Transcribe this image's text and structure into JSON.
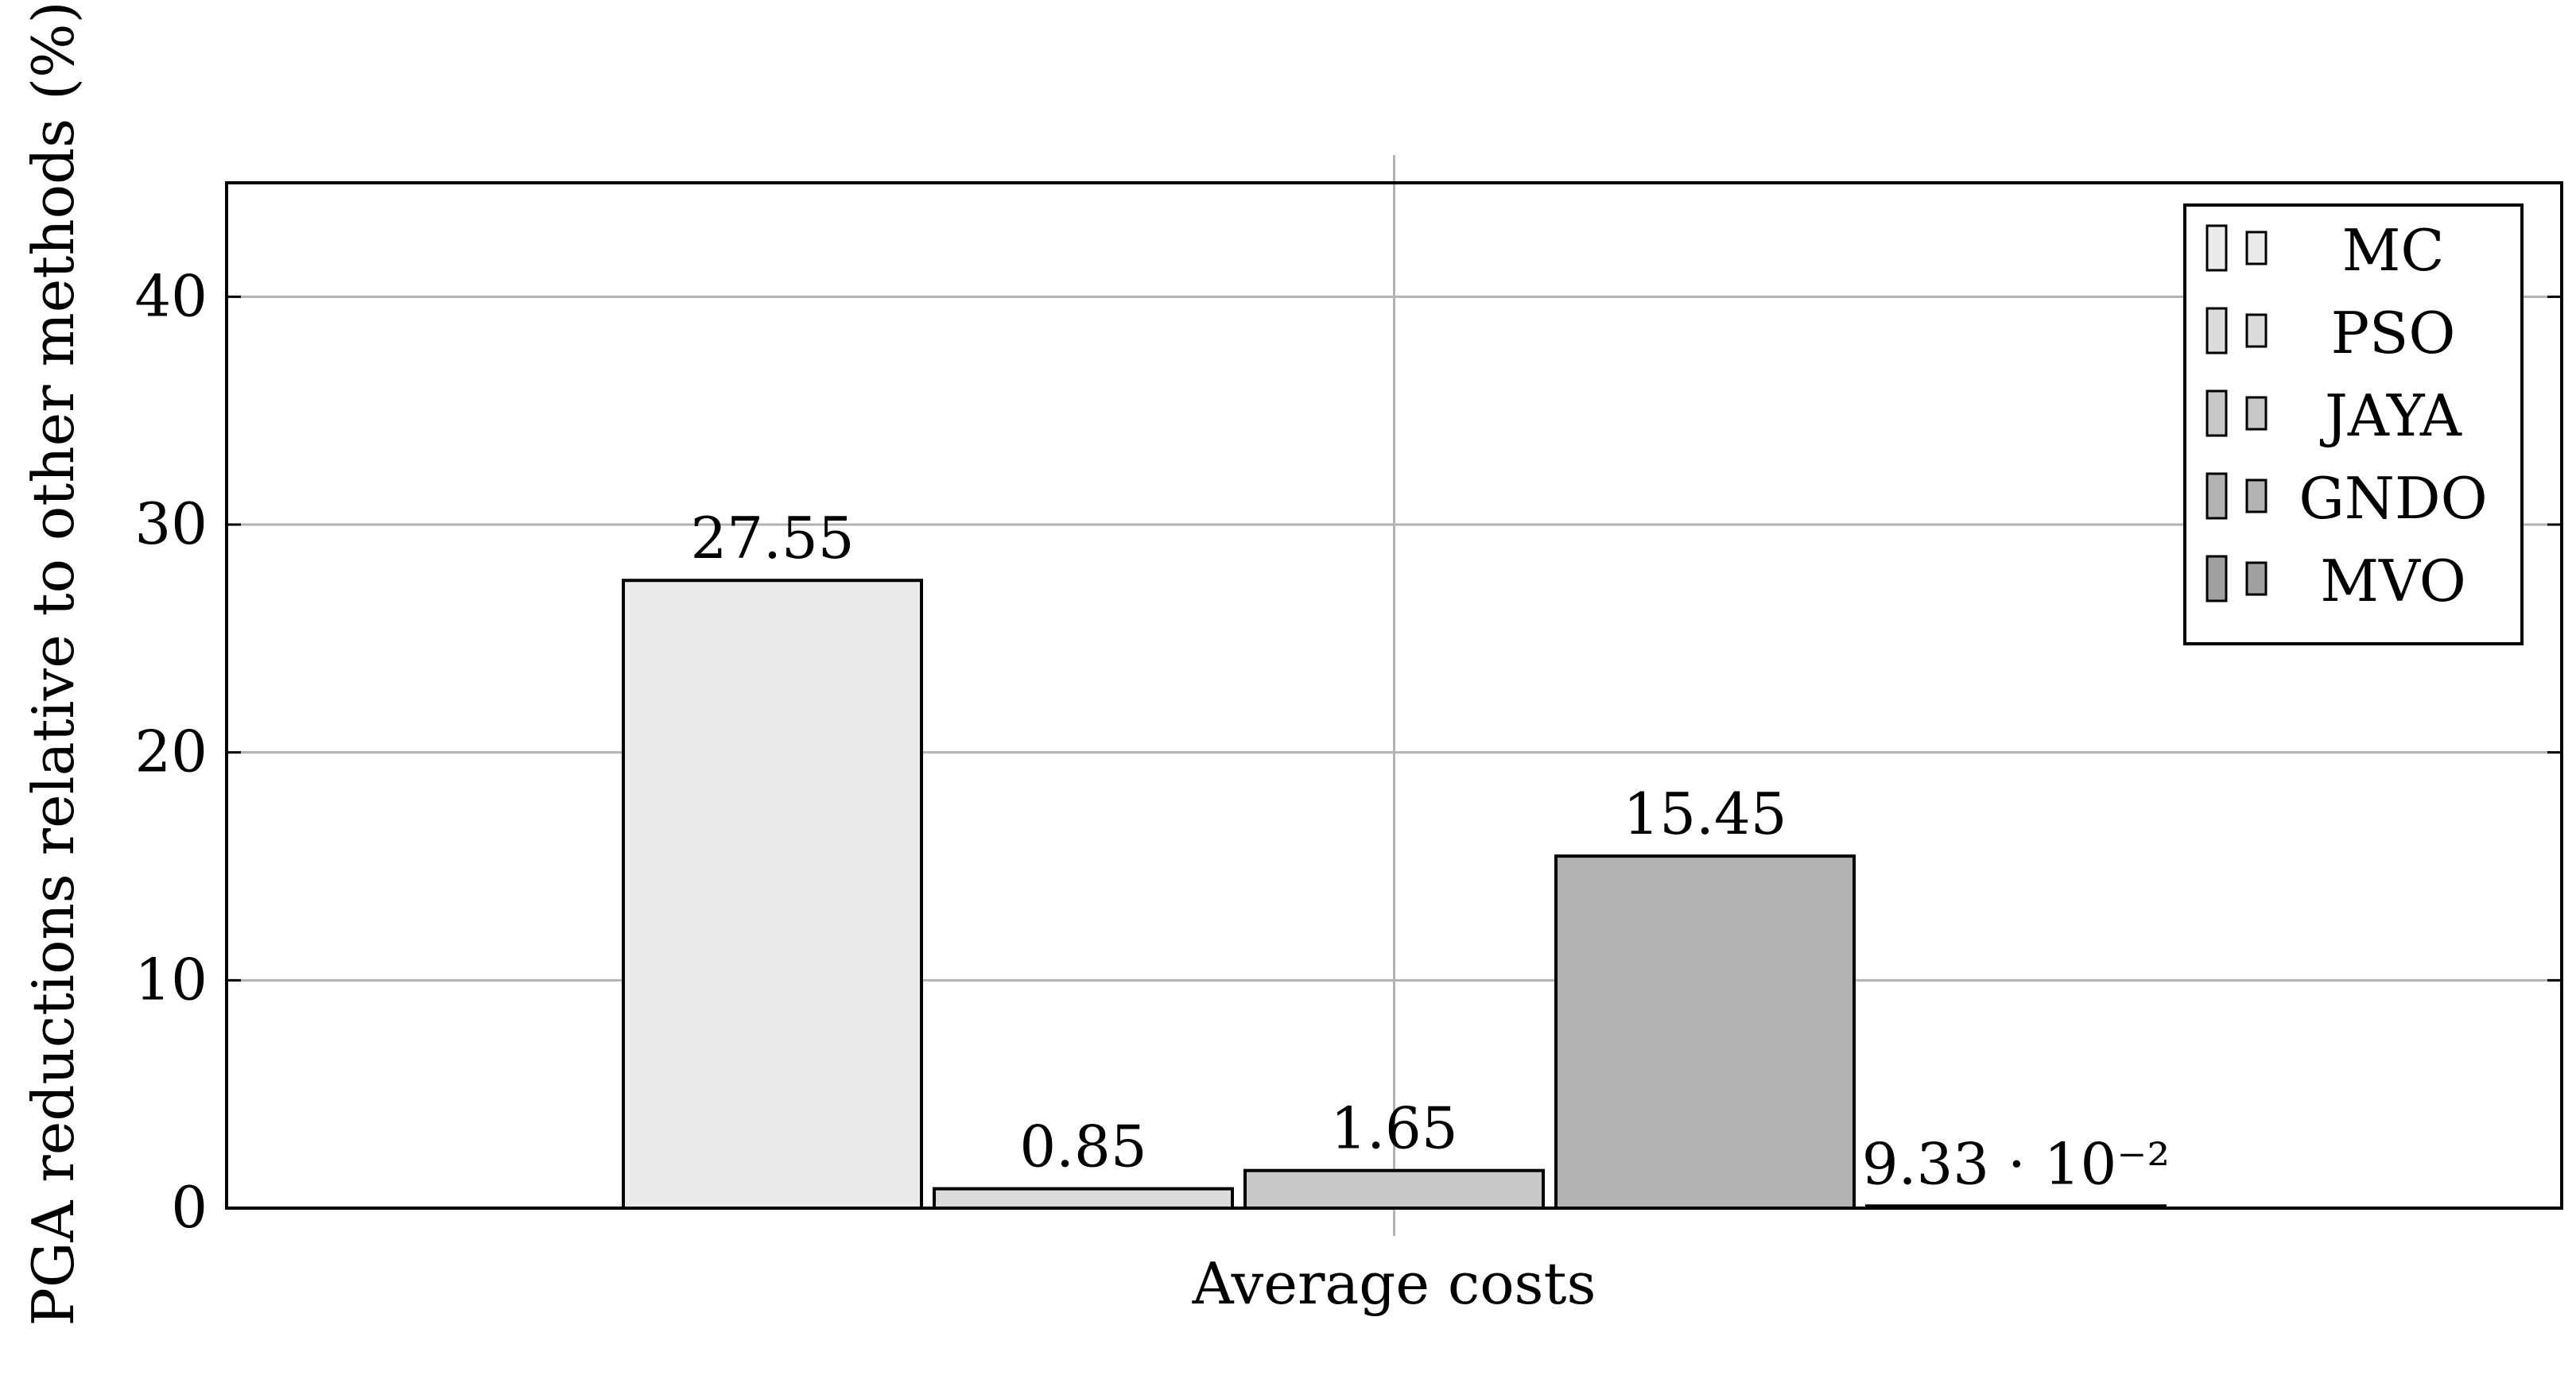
{
  "chart_data": {
    "type": "bar",
    "categories": [
      "Average costs"
    ],
    "series": [
      {
        "name": "MC",
        "values": [
          27.55
        ],
        "value_label": "27.55",
        "color": "#ebebeb"
      },
      {
        "name": "PSO",
        "values": [
          0.85
        ],
        "value_label": "0.85",
        "color": "#dcdcdc"
      },
      {
        "name": "JAYA",
        "values": [
          1.65
        ],
        "value_label": "1.65",
        "color": "#c8c8c8"
      },
      {
        "name": "GNDO",
        "values": [
          15.45
        ],
        "value_label": "15.45",
        "color": "#b3b3b3"
      },
      {
        "name": "MVO",
        "values": [
          0.0933
        ],
        "value_label": "9.33 · 10⁻²",
        "color": "#a0a0a0"
      }
    ],
    "xlabel": "Average costs",
    "ylabel": "PGA reductions relative to other methods (%)",
    "ylim": [
      0,
      45
    ],
    "yticks": [
      "0",
      "10",
      "20",
      "30",
      "40"
    ],
    "ytick_values": [
      0,
      10,
      20,
      30,
      40
    ],
    "grid": true,
    "legend_position": "top-right",
    "bar_edge_color": "#000000",
    "grid_color": "#b3b3b3"
  }
}
